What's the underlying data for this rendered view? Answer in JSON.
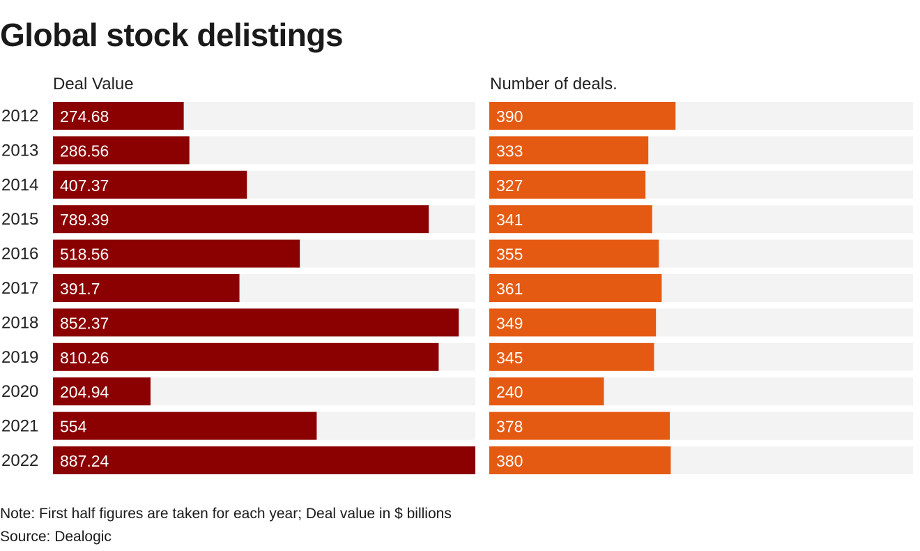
{
  "title": "Global stock delistings",
  "note": "Note: First half figures are taken for each year; Deal value in $ billions",
  "source": "Source: Dealogic",
  "colors": {
    "deal_value": "#8b0000",
    "deal_count": "#e55a12",
    "track": "#f3f3f3",
    "label_dark": "#222222",
    "bar_label": "#ffffff"
  },
  "chart_data": [
    {
      "type": "bar",
      "orientation": "horizontal",
      "title": "Deal Value",
      "categories": [
        "2012",
        "2013",
        "2014",
        "2015",
        "2016",
        "2017",
        "2018",
        "2019",
        "2020",
        "2021",
        "2022"
      ],
      "values": [
        274.68,
        286.56,
        407.37,
        789.39,
        518.56,
        391.7,
        852.37,
        810.26,
        204.94,
        554,
        887.24
      ],
      "labels": [
        "274.68",
        "286.56",
        "407.37",
        "789.39",
        "518.56",
        "391.7",
        "852.37",
        "810.26",
        "204.94",
        "554",
        "887.24"
      ],
      "xlim": [
        0,
        887.24
      ],
      "grid": false
    },
    {
      "type": "bar",
      "orientation": "horizontal",
      "title": "Number of deals.",
      "categories": [
        "2012",
        "2013",
        "2014",
        "2015",
        "2016",
        "2017",
        "2018",
        "2019",
        "2020",
        "2021",
        "2022"
      ],
      "values": [
        390,
        333,
        327,
        341,
        355,
        361,
        349,
        345,
        240,
        378,
        380
      ],
      "labels": [
        "390",
        "333",
        "327",
        "341",
        "355",
        "361",
        "349",
        "345",
        "240",
        "378",
        "380"
      ],
      "xlim": [
        0,
        887.24
      ],
      "grid": false
    }
  ]
}
